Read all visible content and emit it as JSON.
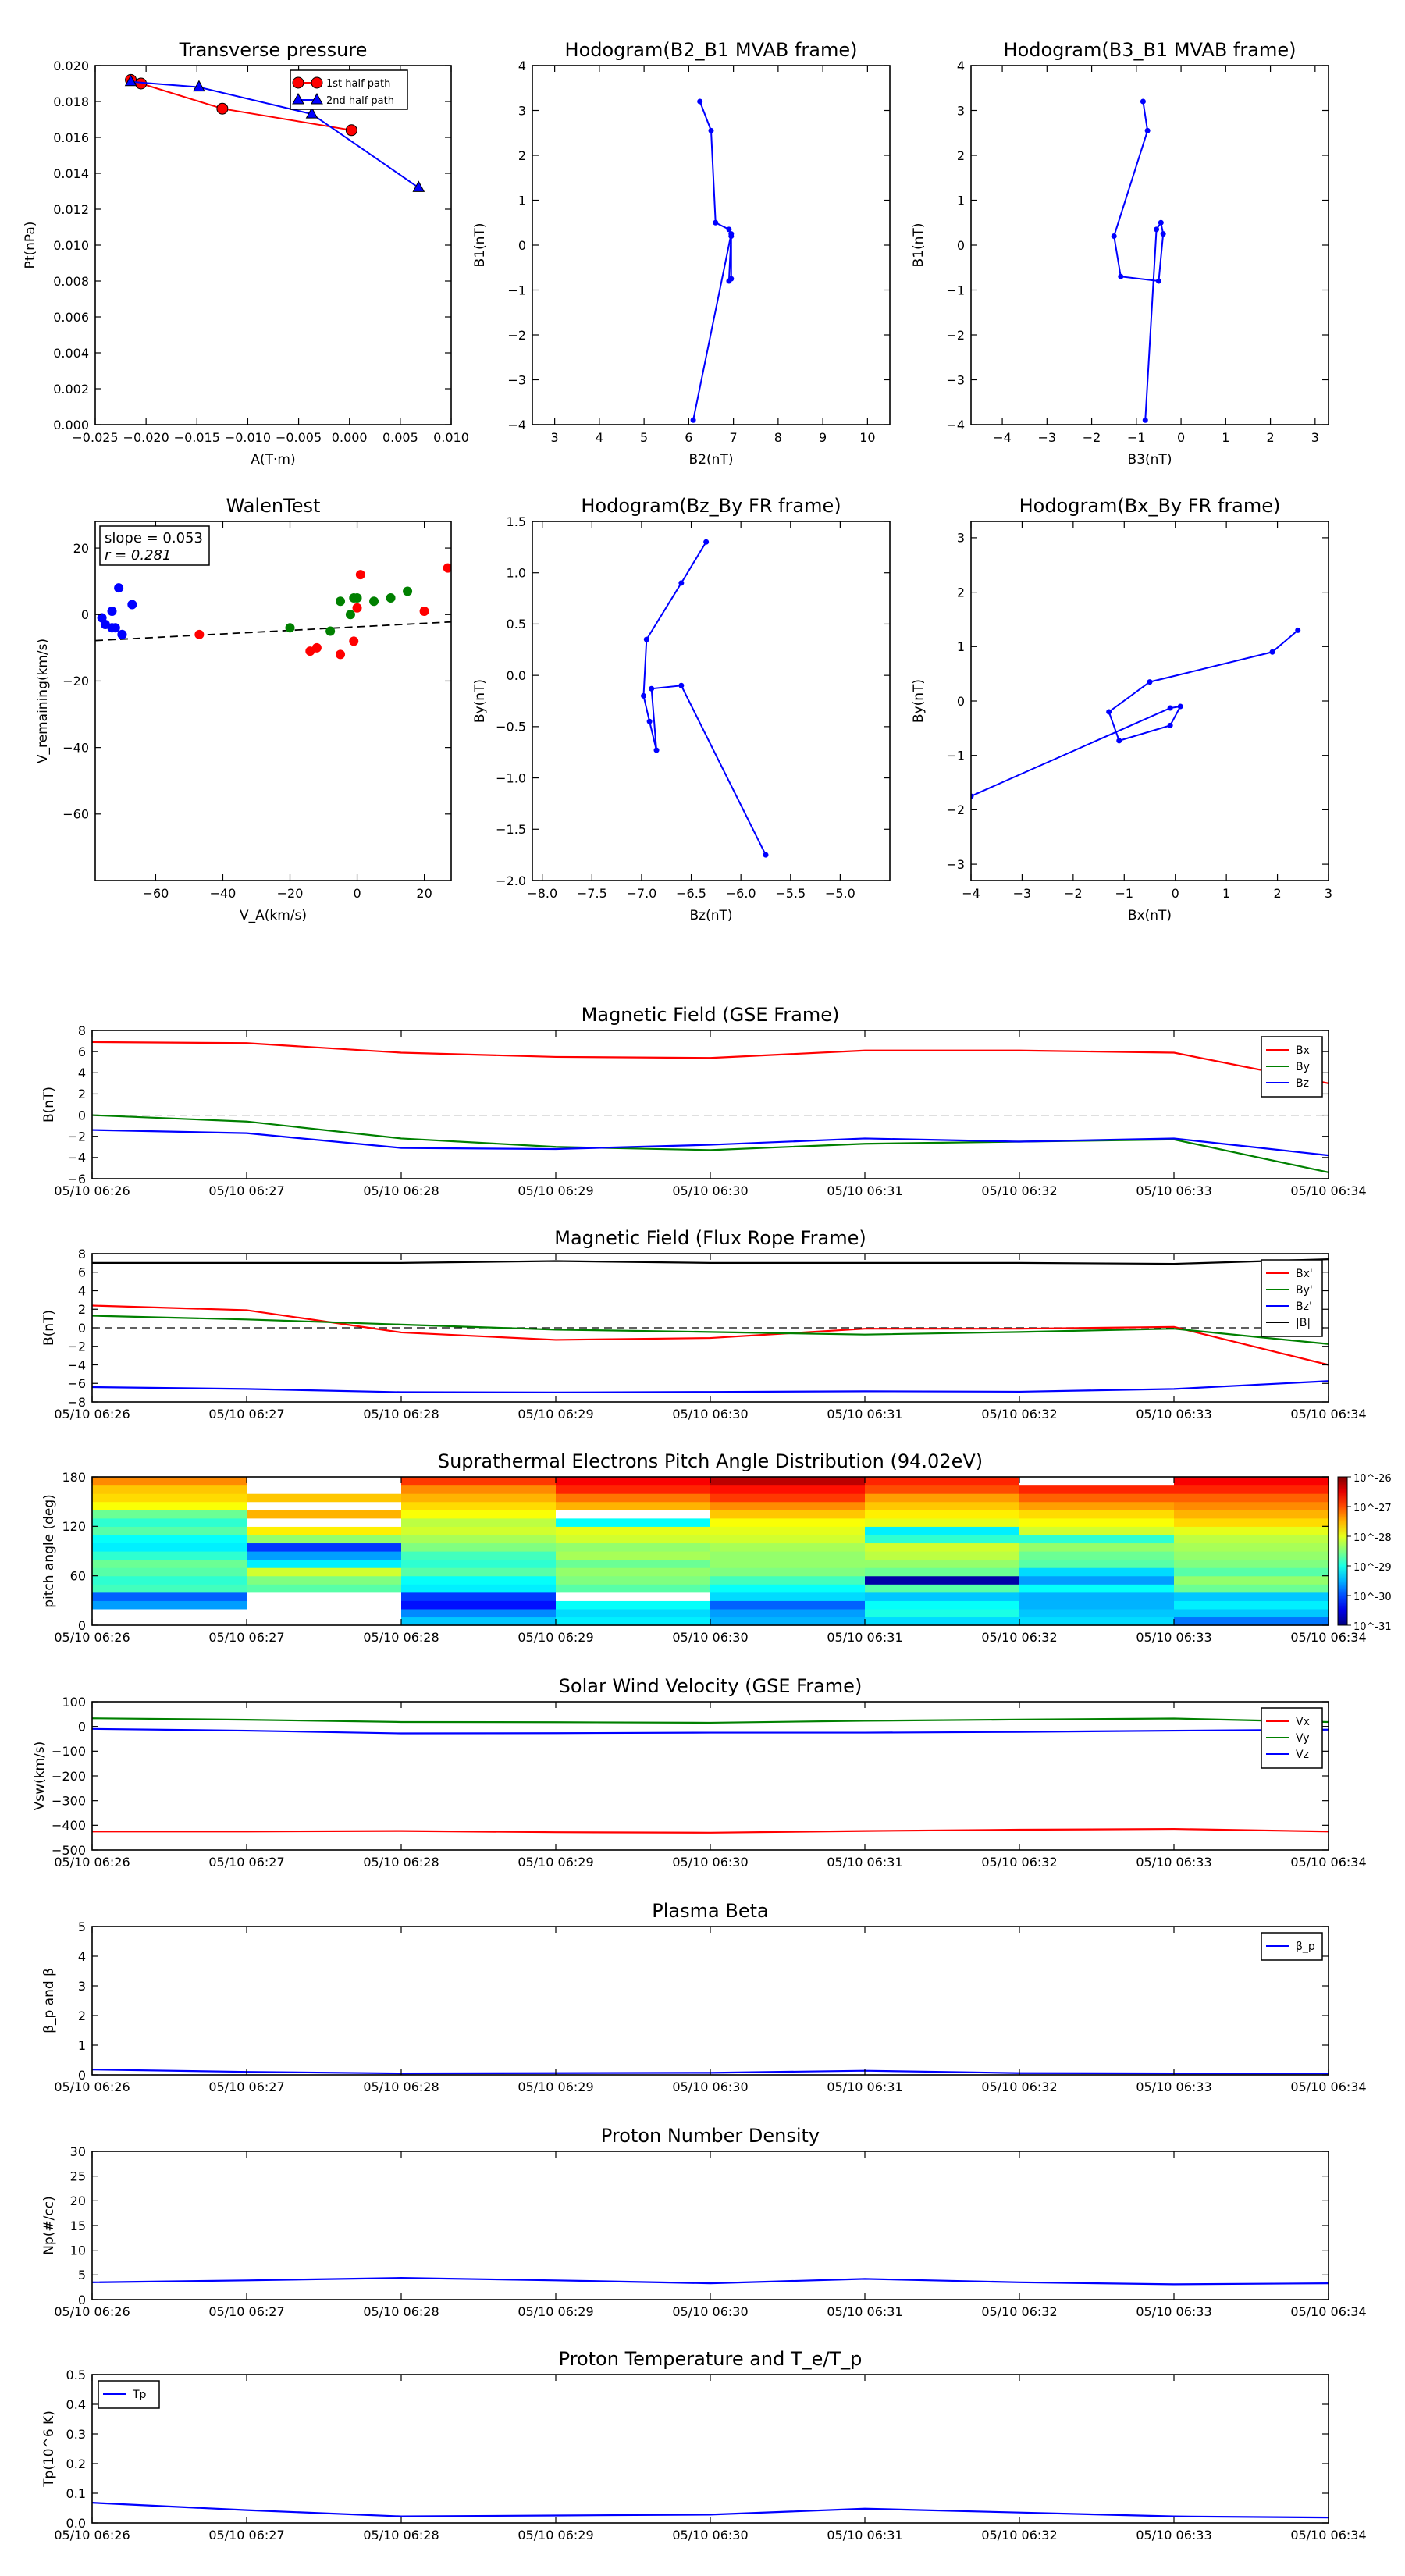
{
  "chart_data": [
    {
      "id": "tp",
      "type": "line",
      "title": "Transverse pressure",
      "xlabel": "A(T·m)",
      "ylabel": "Pt(nPa)",
      "xlim": [
        -0.025,
        0.01
      ],
      "ylim": [
        0,
        0.02
      ],
      "xticks": [
        -0.025,
        -0.02,
        -0.015,
        -0.01,
        -0.005,
        0,
        0.005,
        0.01
      ],
      "xticklabels": [
        "−0.025",
        "−0.020",
        "−0.015",
        "−0.010",
        "−0.005",
        "0.000",
        "0.005",
        "0.010"
      ],
      "yticks": [
        0,
        0.002,
        0.004,
        0.006,
        0.008,
        0.01,
        0.012,
        0.014,
        0.016,
        0.018,
        0.02
      ],
      "yticklabels": [
        "0.000",
        "0.002",
        "0.004",
        "0.006",
        "0.008",
        "0.010",
        "0.012",
        "0.014",
        "0.016",
        "0.018",
        "0.020"
      ],
      "legend": "top-right",
      "series": [
        {
          "name": "1st half path",
          "color": "#ff0000",
          "marker": "circle",
          "x": [
            -0.0215,
            -0.0205,
            -0.0125,
            0.0002
          ],
          "y": [
            0.0192,
            0.019,
            0.0176,
            0.0164
          ]
        },
        {
          "name": "2nd half path",
          "color": "#0000ff",
          "marker": "triangle",
          "x": [
            -0.0215,
            -0.0148,
            -0.0037,
            0.0068
          ],
          "y": [
            0.0191,
            0.0188,
            0.0173,
            0.0132
          ]
        }
      ]
    },
    {
      "id": "h21",
      "type": "line",
      "title": "Hodogram(B2_B1 MVAB frame)",
      "xlabel": "B2(nT)",
      "ylabel": "B1(nT)",
      "xlim": [
        2.5,
        10.5
      ],
      "ylim": [
        -4,
        4
      ],
      "xticks": [
        3,
        4,
        5,
        6,
        7,
        8,
        9,
        10
      ],
      "xticklabels": [
        "3",
        "4",
        "5",
        "6",
        "7",
        "8",
        "9",
        "10"
      ],
      "yticks": [
        -4,
        -3,
        -2,
        -1,
        0,
        1,
        2,
        3,
        4
      ],
      "yticklabels": [
        "−4",
        "−3",
        "−2",
        "−1",
        "0",
        "1",
        "2",
        "3",
        "4"
      ],
      "series": [
        {
          "color": "#0000ff",
          "marker": "dot",
          "x": [
            6.25,
            6.5,
            6.6,
            6.9,
            6.95,
            6.95,
            6.9,
            6.95,
            6.1
          ],
          "y": [
            3.2,
            2.55,
            0.5,
            0.35,
            0.2,
            -0.75,
            -0.8,
            0.25,
            -3.9
          ]
        }
      ]
    },
    {
      "id": "h31",
      "type": "line",
      "title": "Hodogram(B3_B1 MVAB frame)",
      "xlabel": "B3(nT)",
      "ylabel": "B1(nT)",
      "xlim": [
        -4.7,
        3.3
      ],
      "ylim": [
        -4,
        4
      ],
      "xticks": [
        -4,
        -3,
        -2,
        -1,
        0,
        1,
        2,
        3
      ],
      "xticklabels": [
        "−4",
        "−3",
        "−2",
        "−1",
        "0",
        "1",
        "2",
        "3"
      ],
      "yticks": [
        -4,
        -3,
        -2,
        -1,
        0,
        1,
        2,
        3,
        4
      ],
      "yticklabels": [
        "−4",
        "−3",
        "−2",
        "−1",
        "0",
        "1",
        "2",
        "3",
        "4"
      ],
      "series": [
        {
          "color": "#0000ff",
          "marker": "dot",
          "x": [
            -0.85,
            -0.75,
            -1.5,
            -1.35,
            -0.5,
            -0.4,
            -0.45,
            -0.55,
            -0.8
          ],
          "y": [
            3.2,
            2.55,
            0.2,
            -0.7,
            -0.8,
            0.25,
            0.5,
            0.35,
            -3.9
          ]
        }
      ]
    },
    {
      "id": "walen",
      "type": "scatter",
      "title": "WalenTest",
      "xlabel": "V_A(km/s)",
      "ylabel": "V_remaining(km/s)",
      "xlim": [
        -78,
        28
      ],
      "ylim": [
        -80,
        28
      ],
      "xticks": [
        -60,
        -40,
        -20,
        0,
        20
      ],
      "xticklabels": [
        "−60",
        "−40",
        "−20",
        "0",
        "20"
      ],
      "yticks": [
        -60,
        -40,
        -20,
        0,
        20
      ],
      "yticklabels": [
        "−60",
        "−40",
        "−20",
        "0",
        "20"
      ],
      "annotation": {
        "slope_text": "slope = 0.053",
        "r_text": "r = 0.281"
      },
      "fit": {
        "slope": 0.053,
        "intercept": 1.3
      },
      "groups": [
        {
          "color": "#0000ff",
          "x": [
            -76,
            -75,
            -73,
            -72,
            -71,
            -70,
            -70,
            -73,
            -67
          ],
          "y": [
            -1,
            -3,
            -4,
            -4,
            8,
            -6,
            -6,
            1,
            3
          ]
        },
        {
          "color": "#008000",
          "x": [
            -20,
            -8,
            -5,
            -2,
            -1,
            0,
            5,
            10,
            15
          ],
          "y": [
            -4,
            -5,
            4,
            0,
            5,
            5,
            4,
            5,
            7
          ]
        },
        {
          "color": "#ff0000",
          "x": [
            -47,
            -14,
            -12,
            -5,
            -1,
            0,
            1,
            20,
            27
          ],
          "y": [
            -6,
            -11,
            -10,
            -12,
            -8,
            2,
            12,
            1,
            14
          ]
        }
      ]
    },
    {
      "id": "hzy",
      "type": "line",
      "title": "Hodogram(Bz_By FR frame)",
      "xlabel": "Bz(nT)",
      "ylabel": "By(nT)",
      "xlim": [
        -8.1,
        -4.5
      ],
      "ylim": [
        -2,
        1.5
      ],
      "xticks": [
        -8,
        -7.5,
        -7,
        -6.5,
        -6,
        -5.5,
        -5
      ],
      "xticklabels": [
        "−8.0",
        "−7.5",
        "−7.0",
        "−6.5",
        "−6.0",
        "−5.5",
        "−5.0"
      ],
      "yticks": [
        -2,
        -1.5,
        -1,
        -0.5,
        0,
        0.5,
        1,
        1.5
      ],
      "yticklabels": [
        "−2.0",
        "−1.5",
        "−1.0",
        "−0.5",
        "0.0",
        "0.5",
        "1.0",
        "1.5"
      ],
      "series": [
        {
          "color": "#0000ff",
          "marker": "dot",
          "x": [
            -6.35,
            -6.6,
            -6.95,
            -6.98,
            -6.92,
            -6.85,
            -6.9,
            -6.6,
            -5.75
          ],
          "y": [
            1.3,
            0.9,
            0.35,
            -0.2,
            -0.45,
            -0.73,
            -0.13,
            -0.1,
            -1.75
          ]
        }
      ]
    },
    {
      "id": "hxy",
      "type": "line",
      "title": "Hodogram(Bx_By FR frame)",
      "xlabel": "Bx(nT)",
      "ylabel": "By(nT)",
      "xlim": [
        -4,
        3
      ],
      "ylim": [
        -3.3,
        3.3
      ],
      "xticks": [
        -4,
        -3,
        -2,
        -1,
        0,
        1,
        2,
        3
      ],
      "xticklabels": [
        "−4",
        "−3",
        "−2",
        "−1",
        "0",
        "1",
        "2",
        "3"
      ],
      "yticks": [
        -3,
        -2,
        -1,
        0,
        1,
        2,
        3
      ],
      "yticklabels": [
        "−3",
        "−2",
        "−1",
        "0",
        "1",
        "2",
        "3"
      ],
      "series": [
        {
          "color": "#0000ff",
          "marker": "dot",
          "x": [
            2.4,
            1.9,
            -0.5,
            -1.3,
            -1.1,
            -0.1,
            0.1,
            -0.1,
            -4.0
          ],
          "y": [
            1.3,
            0.9,
            0.35,
            -0.2,
            -0.73,
            -0.45,
            -0.1,
            -0.13,
            -1.75
          ]
        }
      ]
    },
    {
      "id": "bgse",
      "type": "line",
      "title": "Magnetic Field (GSE Frame)",
      "ylabel": "B(nT)",
      "ylim": [
        -6,
        8
      ],
      "yticks": [
        -6,
        -4,
        -2,
        0,
        2,
        4,
        6,
        8
      ],
      "yticklabels": [
        "−6",
        "−4",
        "−2",
        "0",
        "2",
        "4",
        "6",
        "8"
      ],
      "zero_line": true,
      "legend": "top-right",
      "series": [
        {
          "name": "Bx",
          "color": "#ff0000",
          "values": [
            6.9,
            6.8,
            5.9,
            5.5,
            5.4,
            6.1,
            6.1,
            5.9,
            3.0
          ]
        },
        {
          "name": "By",
          "color": "#008000",
          "values": [
            0.0,
            -0.6,
            -2.2,
            -3.0,
            -3.3,
            -2.7,
            -2.5,
            -2.3,
            -5.4
          ]
        },
        {
          "name": "Bz",
          "color": "#0000ff",
          "values": [
            -1.4,
            -1.7,
            -3.1,
            -3.2,
            -2.8,
            -2.2,
            -2.5,
            -2.2,
            -3.8
          ]
        }
      ]
    },
    {
      "id": "bfr",
      "type": "line",
      "title": "Magnetic Field (Flux Rope Frame)",
      "ylabel": "B(nT)",
      "ylim": [
        -8,
        8
      ],
      "yticks": [
        -8,
        -6,
        -4,
        -2,
        0,
        2,
        4,
        6,
        8
      ],
      "yticklabels": [
        "−8",
        "−6",
        "−4",
        "−2",
        "0",
        "2",
        "4",
        "6",
        "8"
      ],
      "zero_line": true,
      "legend": "top-right",
      "series": [
        {
          "name": "Bx'",
          "color": "#ff0000",
          "values": [
            2.4,
            1.9,
            -0.5,
            -1.3,
            -1.1,
            -0.1,
            -0.1,
            0.1,
            -4.0
          ]
        },
        {
          "name": "By'",
          "color": "#008000",
          "values": [
            1.3,
            0.9,
            0.35,
            -0.2,
            -0.45,
            -0.73,
            -0.45,
            -0.1,
            -1.75
          ]
        },
        {
          "name": "Bz'",
          "color": "#0000ff",
          "values": [
            -6.4,
            -6.6,
            -6.95,
            -6.98,
            -6.92,
            -6.85,
            -6.9,
            -6.6,
            -5.75
          ]
        },
        {
          "name": "|B|",
          "color": "#000000",
          "values": [
            7.0,
            7.0,
            7.0,
            7.2,
            7.0,
            7.0,
            7.0,
            6.9,
            7.4
          ]
        }
      ]
    },
    {
      "id": "pad",
      "type": "heatmap",
      "title": "Suprathermal Electrons Pitch Angle Distribution (94.02eV)",
      "ylabel": "pitch angle (deg)",
      "ylim": [
        0,
        180
      ],
      "yticks": [
        0,
        60,
        120,
        180
      ],
      "yticklabels": [
        "0",
        "60",
        "120",
        "180"
      ],
      "colorbar": {
        "labels": [
          "10^-31",
          "10^-30",
          "10^-29",
          "10^-28",
          "10^-27",
          "10^-26"
        ],
        "range": [
          -31,
          -26
        ]
      },
      "columns": [
        [
          -31,
          -31,
          -29.6,
          -29.9,
          -28.8,
          -28.9,
          -28.7,
          -28.6,
          -28.9,
          -29.2,
          -29.1,
          -28.7,
          -28.9,
          -28.6,
          -27.9,
          -27.7,
          -27.6,
          -27.3
        ],
        [
          -31,
          -31,
          -31,
          -31,
          -28.7,
          -28.5,
          -28.1,
          -29.2,
          -29.6,
          -30.1,
          -28.4,
          -27.8,
          -31,
          -27.5,
          -31,
          -27.6,
          -31,
          -31
        ],
        [
          -29.4,
          -29.7,
          -30.3,
          -30.1,
          -29.2,
          -29.1,
          -28.7,
          -28.9,
          -28.8,
          -28.5,
          -28.3,
          -28.1,
          -28.2,
          -27.9,
          -27.7,
          -27.5,
          -27.3,
          -26.9
        ],
        [
          -29.2,
          -29.3,
          -29.1,
          -31,
          -28.7,
          -28.5,
          -28.4,
          -28.6,
          -28.3,
          -28.4,
          -28.1,
          -28,
          -29.1,
          -31,
          -27.5,
          -27.2,
          -26.8,
          -26.6
        ],
        [
          -29.5,
          -29.6,
          -29.9,
          -29.3,
          -29.1,
          -28.8,
          -28.5,
          -28.4,
          -28.4,
          -28.3,
          -28.1,
          -28,
          -27.9,
          -27.6,
          -27.3,
          -26.9,
          -26.7,
          -26.3
        ],
        [
          -29.3,
          -29,
          -29.1,
          -29.4,
          -28.7,
          -30.8,
          -28.6,
          -28.4,
          -28.2,
          -28.1,
          -28.9,
          -29.2,
          -28,
          -27.8,
          -27.6,
          -27.4,
          -27,
          -26.8
        ],
        [
          -29.3,
          -29.4,
          -29.5,
          -29.5,
          -29.1,
          -29.6,
          -29.3,
          -28.7,
          -28.6,
          -28.4,
          -28.9,
          -28.1,
          -27.9,
          -27.7,
          -27.4,
          -27.1,
          -26.8,
          -31
        ],
        [
          -29.8,
          -29.4,
          -29.2,
          -29.4,
          -28.6,
          -28.4,
          -28.7,
          -28.5,
          -28.4,
          -28.3,
          -28.2,
          -28,
          -27.7,
          -27.5,
          -27.3,
          -27.1,
          -26.8,
          -26.6
        ]
      ]
    },
    {
      "id": "vsw",
      "type": "line",
      "title": "Solar Wind Velocity (GSE Frame)",
      "ylabel": "Vsw(km/s)",
      "ylim": [
        -500,
        100
      ],
      "yticks": [
        -500,
        -400,
        -300,
        -200,
        -100,
        0,
        100
      ],
      "yticklabels": [
        "−500",
        "−400",
        "−300",
        "−200",
        "−100",
        "0",
        "100"
      ],
      "legend": "top-right",
      "series": [
        {
          "name": "Vx",
          "color": "#ff0000",
          "values": [
            -425,
            -425,
            -423,
            -428,
            -430,
            -423,
            -418,
            -415,
            -425
          ]
        },
        {
          "name": "Vy",
          "color": "#008000",
          "values": [
            33,
            27,
            18,
            17,
            15,
            23,
            28,
            32,
            18
          ]
        },
        {
          "name": "Vz",
          "color": "#0000ff",
          "values": [
            -10,
            -17,
            -28,
            -27,
            -25,
            -25,
            -22,
            -17,
            -13
          ]
        }
      ]
    },
    {
      "id": "beta",
      "type": "line",
      "title": "Plasma Beta",
      "ylabel": "β_p and β",
      "ylim": [
        0,
        5
      ],
      "yticks": [
        0,
        1,
        2,
        3,
        4,
        5
      ],
      "yticklabels": [
        "0",
        "1",
        "2",
        "3",
        "4",
        "5"
      ],
      "legend": "top-right",
      "series": [
        {
          "name": "β_p",
          "color": "#0000ff",
          "values": [
            0.18,
            0.1,
            0.05,
            0.06,
            0.07,
            0.14,
            0.06,
            0.05,
            0.05
          ]
        }
      ]
    },
    {
      "id": "np",
      "type": "line",
      "title": "Proton Number Density",
      "ylabel": "Np(#/cc)",
      "ylim": [
        0,
        30
      ],
      "yticks": [
        0,
        5,
        10,
        15,
        20,
        25,
        30
      ],
      "yticklabels": [
        "0",
        "5",
        "10",
        "15",
        "20",
        "25",
        "30"
      ],
      "series": [
        {
          "color": "#0000ff",
          "values": [
            3.5,
            3.9,
            4.4,
            3.9,
            3.3,
            4.2,
            3.5,
            3.1,
            3.3
          ]
        }
      ]
    },
    {
      "id": "tp2",
      "type": "line",
      "title": "Proton Temperature and T_e/T_p",
      "ylabel": "Tp(10^6 K)",
      "ylim": [
        0,
        0.5
      ],
      "yticks": [
        0,
        0.1,
        0.2,
        0.3,
        0.4,
        0.5
      ],
      "yticklabels": [
        "0.0",
        "0.1",
        "0.2",
        "0.3",
        "0.4",
        "0.5"
      ],
      "legend": "top-left",
      "series": [
        {
          "name": "Tp",
          "color": "#0000ff",
          "values": [
            0.068,
            0.043,
            0.022,
            0.025,
            0.028,
            0.048,
            0.035,
            0.022,
            0.018
          ]
        }
      ]
    }
  ],
  "time_axis": {
    "labels": [
      "05/10 06:26",
      "05/10 06:27",
      "05/10 06:28",
      "05/10 06:29",
      "05/10 06:30",
      "05/10 06:31",
      "05/10 06:32",
      "05/10 06:33",
      "05/10 06:34"
    ]
  }
}
